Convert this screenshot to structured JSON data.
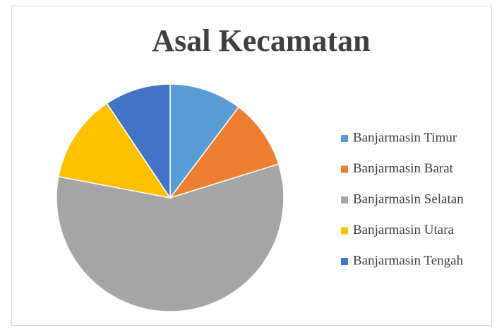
{
  "chart_data": {
    "type": "pie",
    "title": "Asal Kecamatan",
    "categories": [
      "Banjarmasin Timur",
      "Banjarmasin Barat",
      "Banjarmasin Selatan",
      "Banjarmasin Utara",
      "Banjarmasin Tengah"
    ],
    "values": [
      10.3,
      9.9,
      57.8,
      12.6,
      9.4
    ],
    "colors": [
      "#5b9bd5",
      "#ed7d31",
      "#a5a5a5",
      "#ffc000",
      "#4472c4"
    ],
    "legend": "right"
  }
}
